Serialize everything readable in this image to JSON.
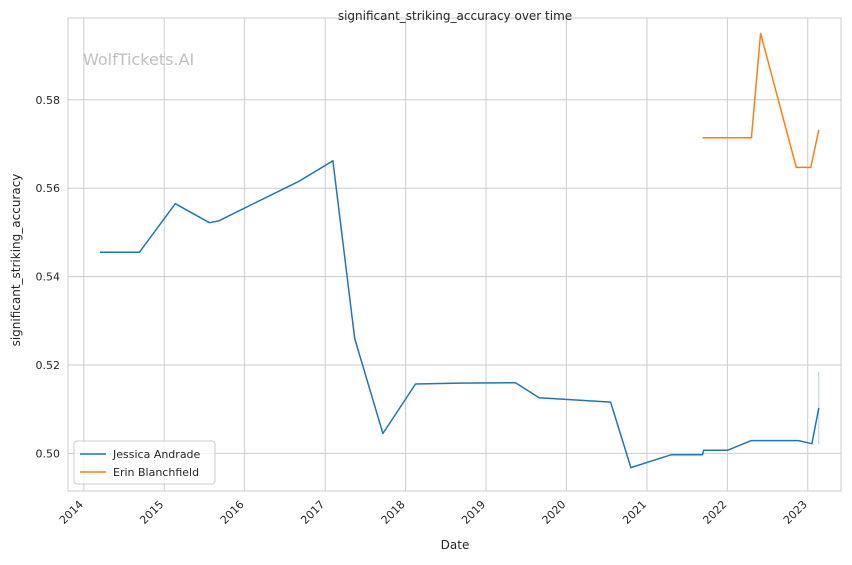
{
  "chart_data": {
    "type": "line",
    "title": "significant_striking_accuracy over time",
    "xlabel": "Date",
    "ylabel": "significant_striking_accuracy",
    "watermark": "WolfTickets.AI",
    "xlim": [
      "2013-10-21",
      "2023-06-01"
    ],
    "ylim": [
      0.4915,
      0.5985
    ],
    "x_ticks": [
      "2014",
      "2015",
      "2016",
      "2017",
      "2018",
      "2019",
      "2020",
      "2021",
      "2022",
      "2023"
    ],
    "y_ticks": [
      "0.50",
      "0.52",
      "0.54",
      "0.56",
      "0.58"
    ],
    "grid": true,
    "legend_position": "lower-left",
    "series": [
      {
        "name": "Jessica Andrade",
        "color": "#1f77b4",
        "points": [
          [
            "2014-03-15",
            0.5455
          ],
          [
            "2014-09-10",
            0.5455
          ],
          [
            "2015-02-20",
            0.5565
          ],
          [
            "2015-07-25",
            0.5522
          ],
          [
            "2015-09-05",
            0.5526
          ],
          [
            "2016-09-01",
            0.5615
          ],
          [
            "2017-02-05",
            0.5662
          ],
          [
            "2017-05-15",
            0.526
          ],
          [
            "2017-09-20",
            0.5045
          ],
          [
            "2018-02-15",
            0.5157
          ],
          [
            "2018-09-01",
            0.5159
          ],
          [
            "2019-05-15",
            0.516
          ],
          [
            "2019-08-30",
            0.5126
          ],
          [
            "2020-07-20",
            0.5116
          ],
          [
            "2020-10-20",
            0.4968
          ],
          [
            "2021-04-20",
            0.4997
          ],
          [
            "2021-09-10",
            0.4997
          ],
          [
            "2021-09-15",
            0.5007
          ],
          [
            "2022-01-01",
            0.5007
          ],
          [
            "2022-04-20",
            0.5029
          ],
          [
            "2022-11-20",
            0.5029
          ],
          [
            "2023-01-20",
            0.5022
          ],
          [
            "2023-02-20",
            0.5103
          ]
        ]
      },
      {
        "name": "Erin Blanchfield",
        "color": "#ff7f0e",
        "points": [
          [
            "2021-09-10",
            0.5714
          ],
          [
            "2022-04-20",
            0.5714
          ],
          [
            "2022-06-01",
            0.595
          ],
          [
            "2022-11-10",
            0.5647
          ],
          [
            "2023-01-15",
            0.5647
          ],
          [
            "2023-02-20",
            0.5732
          ]
        ]
      }
    ],
    "band": {
      "series": "Jessica Andrade",
      "x": "2023-02-20",
      "y_range": [
        0.502,
        0.5185
      ]
    }
  }
}
